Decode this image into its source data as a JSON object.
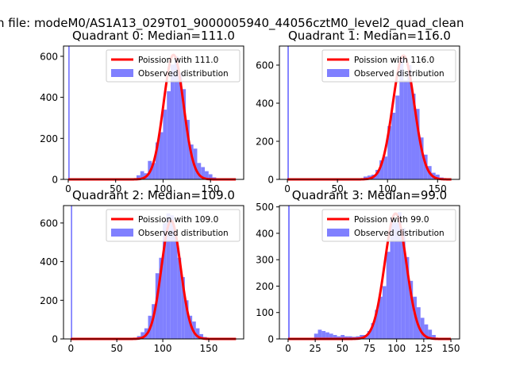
{
  "figure": {
    "suptitle": "n file: modeM0/AS1A13_029T01_9000005940_44056cztM0_level2_quad_clean"
  },
  "colors": {
    "curve": "#ff0000",
    "bars": "#8080ff",
    "axis": "#000000",
    "legend_border": "#cccccc"
  },
  "chart_data": [
    {
      "type": "bar",
      "title": "Quadrant 0: Median=111.0",
      "xlim": [
        -5,
        185
      ],
      "ylim": [
        0,
        650
      ],
      "xticks": [
        0,
        50,
        100,
        150
      ],
      "yticks": [
        0,
        200,
        400,
        600
      ],
      "legend_position": "upper right",
      "series": [
        {
          "name": "Poission with 111.0",
          "kind": "line",
          "mean": 111.0,
          "peak": 607
        },
        {
          "name": "Observed distribution",
          "kind": "hist",
          "bin_width": 4,
          "bins": [
            {
              "x": 0,
              "y": 650
            },
            {
              "x": 72,
              "y": 20
            },
            {
              "x": 76,
              "y": 40
            },
            {
              "x": 80,
              "y": 30
            },
            {
              "x": 84,
              "y": 90
            },
            {
              "x": 88,
              "y": 80
            },
            {
              "x": 92,
              "y": 180
            },
            {
              "x": 96,
              "y": 230
            },
            {
              "x": 100,
              "y": 340
            },
            {
              "x": 104,
              "y": 430
            },
            {
              "x": 108,
              "y": 560
            },
            {
              "x": 112,
              "y": 600
            },
            {
              "x": 116,
              "y": 520
            },
            {
              "x": 120,
              "y": 440
            },
            {
              "x": 124,
              "y": 290
            },
            {
              "x": 128,
              "y": 170
            },
            {
              "x": 132,
              "y": 150
            },
            {
              "x": 136,
              "y": 80
            },
            {
              "x": 140,
              "y": 60
            },
            {
              "x": 144,
              "y": 40
            },
            {
              "x": 148,
              "y": 25
            },
            {
              "x": 152,
              "y": 10
            }
          ]
        }
      ]
    },
    {
      "type": "bar",
      "title": "Quadrant 1: Median=116.0",
      "xlim": [
        -8,
        172
      ],
      "ylim": [
        0,
        700
      ],
      "xticks": [
        0,
        50,
        100,
        150
      ],
      "yticks": [
        0,
        200,
        400,
        600
      ],
      "legend_position": "upper right",
      "series": [
        {
          "name": "Poission with 116.0",
          "kind": "line",
          "mean": 116.0,
          "peak": 650
        },
        {
          "name": "Observed distribution",
          "kind": "hist",
          "bin_width": 4,
          "bins": [
            {
              "x": 0,
              "y": 700
            },
            {
              "x": 76,
              "y": 15
            },
            {
              "x": 80,
              "y": 20
            },
            {
              "x": 84,
              "y": 25
            },
            {
              "x": 88,
              "y": 50
            },
            {
              "x": 92,
              "y": 100
            },
            {
              "x": 96,
              "y": 120
            },
            {
              "x": 100,
              "y": 280
            },
            {
              "x": 104,
              "y": 350
            },
            {
              "x": 108,
              "y": 440
            },
            {
              "x": 112,
              "y": 640
            },
            {
              "x": 116,
              "y": 520
            },
            {
              "x": 120,
              "y": 600
            },
            {
              "x": 124,
              "y": 450
            },
            {
              "x": 128,
              "y": 370
            },
            {
              "x": 132,
              "y": 220
            },
            {
              "x": 136,
              "y": 130
            },
            {
              "x": 140,
              "y": 70
            },
            {
              "x": 144,
              "y": 35
            },
            {
              "x": 148,
              "y": 25
            },
            {
              "x": 152,
              "y": 10
            }
          ]
        }
      ]
    },
    {
      "type": "bar",
      "title": "Quadrant 2: Median=109.0",
      "xlim": [
        -8,
        188
      ],
      "ylim": [
        0,
        690
      ],
      "xticks": [
        0,
        50,
        100,
        150
      ],
      "yticks": [
        0,
        200,
        400,
        600
      ],
      "legend_position": "upper right",
      "series": [
        {
          "name": "Poission with 109.0",
          "kind": "line",
          "mean": 109.0,
          "peak": 612
        },
        {
          "name": "Observed distribution",
          "kind": "hist",
          "bin_width": 4,
          "bins": [
            {
              "x": 0,
              "y": 690
            },
            {
              "x": 72,
              "y": 15
            },
            {
              "x": 76,
              "y": 35
            },
            {
              "x": 80,
              "y": 55
            },
            {
              "x": 84,
              "y": 120
            },
            {
              "x": 88,
              "y": 180
            },
            {
              "x": 92,
              "y": 340
            },
            {
              "x": 96,
              "y": 420
            },
            {
              "x": 100,
              "y": 600
            },
            {
              "x": 104,
              "y": 650
            },
            {
              "x": 108,
              "y": 640
            },
            {
              "x": 112,
              "y": 560
            },
            {
              "x": 116,
              "y": 420
            },
            {
              "x": 120,
              "y": 320
            },
            {
              "x": 124,
              "y": 200
            },
            {
              "x": 128,
              "y": 120
            },
            {
              "x": 132,
              "y": 90
            },
            {
              "x": 136,
              "y": 55
            },
            {
              "x": 140,
              "y": 25
            },
            {
              "x": 144,
              "y": 10
            }
          ]
        }
      ]
    },
    {
      "type": "bar",
      "title": "Quadrant 3: Median=99.0",
      "xlim": [
        -8,
        158
      ],
      "ylim": [
        0,
        505
      ],
      "xticks": [
        0,
        25,
        50,
        75,
        100,
        125,
        150
      ],
      "yticks": [
        0,
        100,
        200,
        300,
        400,
        500
      ],
      "legend_position": "upper right",
      "series": [
        {
          "name": "Poission with 99.0",
          "kind": "line",
          "mean": 99.0,
          "peak": 475
        },
        {
          "name": "Observed distribution",
          "kind": "hist",
          "bin_width": 3.5,
          "bins": [
            {
              "x": 0,
              "y": 505
            },
            {
              "x": 24,
              "y": 20
            },
            {
              "x": 27.5,
              "y": 35
            },
            {
              "x": 31,
              "y": 30
            },
            {
              "x": 34.5,
              "y": 25
            },
            {
              "x": 38,
              "y": 20
            },
            {
              "x": 41.5,
              "y": 15
            },
            {
              "x": 45,
              "y": 10
            },
            {
              "x": 48.5,
              "y": 15
            },
            {
              "x": 52,
              "y": 10
            },
            {
              "x": 55.5,
              "y": 10
            },
            {
              "x": 59,
              "y": 8
            },
            {
              "x": 62.5,
              "y": 10
            },
            {
              "x": 66,
              "y": 15
            },
            {
              "x": 69.5,
              "y": 15
            },
            {
              "x": 73,
              "y": 30
            },
            {
              "x": 76.5,
              "y": 60
            },
            {
              "x": 80,
              "y": 110
            },
            {
              "x": 83.5,
              "y": 160
            },
            {
              "x": 87,
              "y": 200
            },
            {
              "x": 90.5,
              "y": 330
            },
            {
              "x": 94,
              "y": 460
            },
            {
              "x": 97.5,
              "y": 440
            },
            {
              "x": 101,
              "y": 480
            },
            {
              "x": 104.5,
              "y": 420
            },
            {
              "x": 108,
              "y": 310
            },
            {
              "x": 111.5,
              "y": 220
            },
            {
              "x": 115,
              "y": 160
            },
            {
              "x": 118.5,
              "y": 120
            },
            {
              "x": 122,
              "y": 80
            },
            {
              "x": 125.5,
              "y": 55
            },
            {
              "x": 129,
              "y": 35
            },
            {
              "x": 132.5,
              "y": 15
            }
          ]
        }
      ]
    }
  ]
}
